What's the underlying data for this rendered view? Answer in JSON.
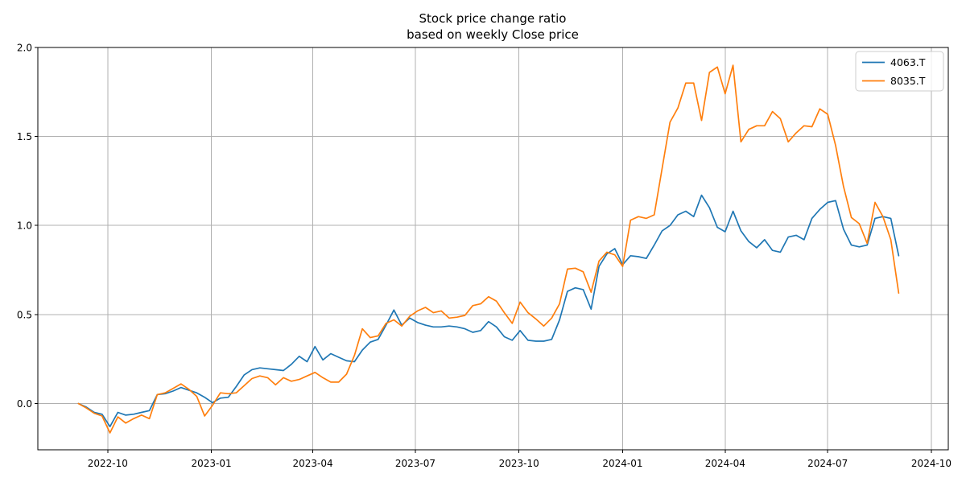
{
  "chart_data": {
    "type": "line",
    "title": "Stock price change ratio based on weekly Close price",
    "title_lines": [
      "Stock price change ratio",
      "based on weekly Close price"
    ],
    "xlabel": "",
    "ylabel": "",
    "grid": true,
    "legend": {
      "position": "upper right"
    },
    "ylim": [
      -0.26,
      2.0
    ],
    "xlim": [
      "2022-07-31",
      "2024-10-16"
    ],
    "y_ticks": [
      {
        "value": 0.0,
        "label": "0.0"
      },
      {
        "value": 0.5,
        "label": "0.5"
      },
      {
        "value": 1.0,
        "label": "1.0"
      },
      {
        "value": 1.5,
        "label": "1.5"
      },
      {
        "value": 2.0,
        "label": "2.0"
      }
    ],
    "x_ticks": [
      {
        "date": "2022-10-01",
        "label": "2022-10"
      },
      {
        "date": "2023-01-01",
        "label": "2023-01"
      },
      {
        "date": "2023-04-01",
        "label": "2023-04"
      },
      {
        "date": "2023-07-01",
        "label": "2023-07"
      },
      {
        "date": "2023-10-01",
        "label": "2023-10"
      },
      {
        "date": "2024-01-01",
        "label": "2024-01"
      },
      {
        "date": "2024-04-01",
        "label": "2024-04"
      },
      {
        "date": "2024-07-01",
        "label": "2024-07"
      },
      {
        "date": "2024-10-01",
        "label": "2024-10"
      }
    ],
    "x": [
      "2022-09-05",
      "2022-09-12",
      "2022-09-19",
      "2022-09-26",
      "2022-10-03",
      "2022-10-10",
      "2022-10-17",
      "2022-10-24",
      "2022-10-31",
      "2022-11-07",
      "2022-11-14",
      "2022-11-21",
      "2022-11-28",
      "2022-12-05",
      "2022-12-12",
      "2022-12-19",
      "2022-12-26",
      "2023-01-02",
      "2023-01-09",
      "2023-01-16",
      "2023-01-23",
      "2023-01-30",
      "2023-02-06",
      "2023-02-13",
      "2023-02-20",
      "2023-02-27",
      "2023-03-06",
      "2023-03-13",
      "2023-03-20",
      "2023-03-27",
      "2023-04-03",
      "2023-04-10",
      "2023-04-17",
      "2023-04-24",
      "2023-05-01",
      "2023-05-08",
      "2023-05-15",
      "2023-05-22",
      "2023-05-29",
      "2023-06-05",
      "2023-06-12",
      "2023-06-19",
      "2023-06-26",
      "2023-07-03",
      "2023-07-10",
      "2023-07-17",
      "2023-07-24",
      "2023-07-31",
      "2023-08-07",
      "2023-08-14",
      "2023-08-21",
      "2023-08-28",
      "2023-09-04",
      "2023-09-11",
      "2023-09-18",
      "2023-09-25",
      "2023-10-02",
      "2023-10-09",
      "2023-10-16",
      "2023-10-23",
      "2023-10-30",
      "2023-11-06",
      "2023-11-13",
      "2023-11-20",
      "2023-11-27",
      "2023-12-04",
      "2023-12-11",
      "2023-12-18",
      "2023-12-25",
      "2024-01-01",
      "2024-01-08",
      "2024-01-15",
      "2024-01-22",
      "2024-01-29",
      "2024-02-05",
      "2024-02-12",
      "2024-02-19",
      "2024-02-26",
      "2024-03-04",
      "2024-03-11",
      "2024-03-18",
      "2024-03-25",
      "2024-04-01",
      "2024-04-08",
      "2024-04-15",
      "2024-04-22",
      "2024-04-29",
      "2024-05-06",
      "2024-05-13",
      "2024-05-20",
      "2024-05-27",
      "2024-06-03",
      "2024-06-10",
      "2024-06-17",
      "2024-06-24",
      "2024-07-01",
      "2024-07-08",
      "2024-07-15",
      "2024-07-22",
      "2024-07-29",
      "2024-08-05",
      "2024-08-12",
      "2024-08-19",
      "2024-08-26",
      "2024-09-02"
    ],
    "series": [
      {
        "name": "4063.T",
        "color": "#1f77b4",
        "values": [
          0.0,
          -0.02,
          -0.05,
          -0.06,
          -0.13,
          -0.05,
          -0.065,
          -0.06,
          -0.05,
          -0.04,
          0.05,
          0.055,
          0.07,
          0.09,
          0.075,
          0.06,
          0.035,
          0.005,
          0.03,
          0.035,
          0.095,
          0.16,
          0.19,
          0.2,
          0.195,
          0.19,
          0.185,
          0.22,
          0.265,
          0.235,
          0.32,
          0.245,
          0.28,
          0.26,
          0.24,
          0.235,
          0.3,
          0.345,
          0.36,
          0.44,
          0.525,
          0.44,
          0.48,
          0.455,
          0.44,
          0.43,
          0.43,
          0.435,
          0.43,
          0.42,
          0.4,
          0.41,
          0.46,
          0.43,
          0.375,
          0.355,
          0.41,
          0.355,
          0.35,
          0.35,
          0.36,
          0.47,
          0.63,
          0.65,
          0.64,
          0.53,
          0.77,
          0.84,
          0.87,
          0.78,
          0.83,
          0.825,
          0.815,
          0.89,
          0.97,
          1.0,
          1.06,
          1.08,
          1.05,
          1.17,
          1.1,
          0.99,
          0.965,
          1.08,
          0.97,
          0.91,
          0.875,
          0.92,
          0.86,
          0.85,
          0.935,
          0.945,
          0.92,
          1.04,
          1.09,
          1.13,
          1.14,
          0.98,
          0.89,
          0.88,
          0.89,
          1.04,
          1.05,
          1.04,
          0.83
        ]
      },
      {
        "name": "8035.T",
        "color": "#ff7f0e",
        "values": [
          0.0,
          -0.025,
          -0.055,
          -0.07,
          -0.165,
          -0.075,
          -0.11,
          -0.085,
          -0.065,
          -0.085,
          0.05,
          0.06,
          0.085,
          0.11,
          0.08,
          0.04,
          -0.07,
          -0.01,
          0.06,
          0.055,
          0.06,
          0.1,
          0.14,
          0.155,
          0.145,
          0.105,
          0.145,
          0.125,
          0.135,
          0.155,
          0.175,
          0.145,
          0.12,
          0.12,
          0.165,
          0.27,
          0.42,
          0.37,
          0.38,
          0.45,
          0.47,
          0.435,
          0.49,
          0.52,
          0.54,
          0.51,
          0.52,
          0.48,
          0.485,
          0.495,
          0.55,
          0.56,
          0.6,
          0.575,
          0.51,
          0.45,
          0.57,
          0.51,
          0.475,
          0.435,
          0.48,
          0.56,
          0.755,
          0.76,
          0.74,
          0.625,
          0.8,
          0.85,
          0.835,
          0.77,
          1.03,
          1.05,
          1.04,
          1.06,
          1.32,
          1.58,
          1.66,
          1.8,
          1.8,
          1.59,
          1.86,
          1.89,
          1.74,
          1.9,
          1.47,
          1.54,
          1.56,
          1.56,
          1.64,
          1.6,
          1.47,
          1.52,
          1.56,
          1.555,
          1.655,
          1.625,
          1.45,
          1.22,
          1.045,
          1.01,
          0.9,
          1.13,
          1.05,
          0.92,
          0.62
        ]
      }
    ],
    "colors": {
      "grid": "#b0b0b0",
      "spine": "#000000",
      "background": "#ffffff"
    }
  }
}
